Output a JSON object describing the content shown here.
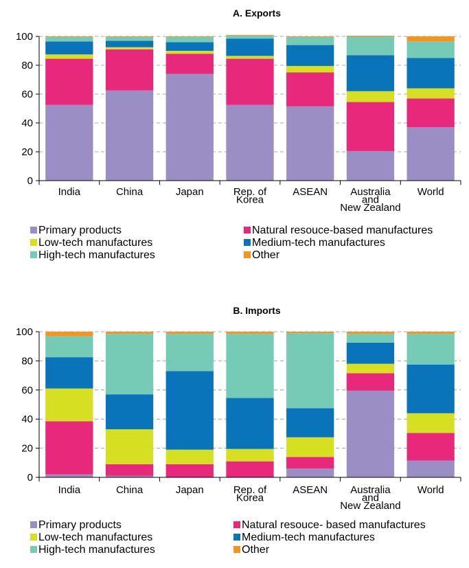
{
  "chart_data": [
    {
      "type": "bar",
      "stacked": true,
      "title": "A. Exports",
      "xlabel": "",
      "ylabel": "",
      "ylim": [
        0,
        100
      ],
      "yticks": [
        0,
        20,
        40,
        60,
        80,
        100
      ],
      "grid": "horizontal dashed",
      "categories": [
        [
          "India"
        ],
        [
          "China"
        ],
        [
          "Japan"
        ],
        [
          "Rep. of",
          "Korea"
        ],
        [
          "ASEAN"
        ],
        [
          "Australia",
          "and",
          "New Zealand"
        ],
        [
          "World"
        ]
      ],
      "series": [
        {
          "name": "Primary products",
          "color": "#9b8ec4",
          "values": [
            52.5,
            62.5,
            74,
            52.5,
            51.5,
            20.5,
            37
          ]
        },
        {
          "name": "Natural resouce-based manufactures",
          "color": "#e8287a",
          "values": [
            32,
            28.5,
            14,
            32,
            23.5,
            34,
            20
          ]
        },
        {
          "name": "Low-tech manufactures",
          "color": "#d7df23",
          "values": [
            3,
            1.5,
            2,
            2,
            4.5,
            7.5,
            7
          ]
        },
        {
          "name": "Medium-tech manufactures",
          "color": "#0a74bb",
          "values": [
            9,
            4.5,
            6,
            12,
            14.5,
            25,
            21
          ]
        },
        {
          "name": "High-tech manufactures",
          "color": "#76cbb6",
          "values": [
            3,
            2.5,
            3.5,
            2,
            5.5,
            13,
            11.5
          ]
        },
        {
          "name": "Other",
          "color": "#f7941d",
          "values": [
            0.5,
            0.5,
            0.5,
            0.5,
            0.5,
            0.5,
            3.5
          ]
        }
      ],
      "legend": [
        "Primary products",
        "Natural resouce-based manufactures",
        "Low-tech manufactures",
        "Medium-tech manufactures",
        "High-tech manufactures",
        "Other"
      ]
    },
    {
      "type": "bar",
      "stacked": true,
      "title": "B. Imports",
      "xlabel": "",
      "ylabel": "",
      "ylim": [
        0,
        100
      ],
      "yticks": [
        0,
        20,
        40,
        60,
        80,
        100
      ],
      "grid": "horizontal dashed",
      "categories": [
        [
          "India"
        ],
        [
          "China"
        ],
        [
          "Japan"
        ],
        [
          "Rep. of",
          "Korea"
        ],
        [
          "ASEAN"
        ],
        [
          "Australia",
          "and",
          "New Zealand"
        ],
        [
          "World"
        ]
      ],
      "series": [
        {
          "name": "Primary products",
          "color": "#9b8ec4",
          "values": [
            2,
            1,
            0,
            0,
            6,
            59.5,
            11.5
          ]
        },
        {
          "name": "Natural resouce- based manufactures",
          "color": "#e8287a",
          "values": [
            36.5,
            8,
            9,
            11,
            8,
            12,
            19
          ]
        },
        {
          "name": "Low-tech manufactures",
          "color": "#d7df23",
          "values": [
            22.5,
            24,
            10,
            8.5,
            13.5,
            6.5,
            13.5
          ]
        },
        {
          "name": "Medium-tech manufactures",
          "color": "#0a74bb",
          "values": [
            21.5,
            24,
            54,
            35,
            20,
            14.5,
            33.5
          ]
        },
        {
          "name": "High-tech manufactures",
          "color": "#76cbb6",
          "values": [
            14.5,
            41.5,
            25.5,
            44,
            51.5,
            6,
            21
          ]
        },
        {
          "name": "Other",
          "color": "#f7941d",
          "values": [
            3,
            1.5,
            1.5,
            1.5,
            1,
            1.5,
            1.5
          ]
        }
      ],
      "legend": [
        "Primary products",
        "Natural resouce- based manufactures",
        "Low-tech manufactures",
        "Medium-tech manufactures",
        "High-tech manufactures",
        "Other"
      ]
    }
  ]
}
